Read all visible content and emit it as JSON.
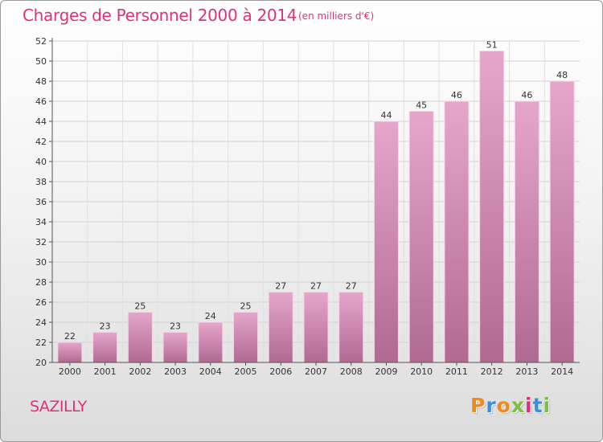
{
  "title": "Charges de Personnel 2000 à 2014",
  "subtitle": "(en milliers d'€)",
  "commune": "SAZILLY",
  "logo": {
    "letters": [
      "P",
      "r",
      "o",
      "x",
      "i",
      "t",
      "i"
    ],
    "colors": [
      "#f08a1e",
      "#3a8fd8",
      "#f08a1e",
      "#7ac142",
      "#e0307a",
      "#3a8fd8",
      "#7ac142"
    ]
  },
  "colors": {
    "accent": "#e0307a",
    "bar_top": "#e6a6cb",
    "bar_bottom": "#b06a92"
  },
  "chart_data": {
    "type": "bar",
    "title": "Charges de Personnel 2000 à 2014",
    "subtitle": "(en milliers d'€)",
    "categories": [
      "2000",
      "2001",
      "2002",
      "2003",
      "2004",
      "2005",
      "2006",
      "2007",
      "2008",
      "2009",
      "2010",
      "2011",
      "2012",
      "2013",
      "2014"
    ],
    "values": [
      22,
      23,
      25,
      23,
      24,
      25,
      27,
      27,
      27,
      44,
      45,
      46,
      51,
      46,
      48
    ],
    "ylim": [
      20,
      52
    ],
    "yticks": [
      20,
      22,
      24,
      26,
      28,
      30,
      32,
      34,
      36,
      38,
      40,
      42,
      44,
      46,
      48,
      50,
      52
    ],
    "grid": true,
    "legend": "none"
  }
}
